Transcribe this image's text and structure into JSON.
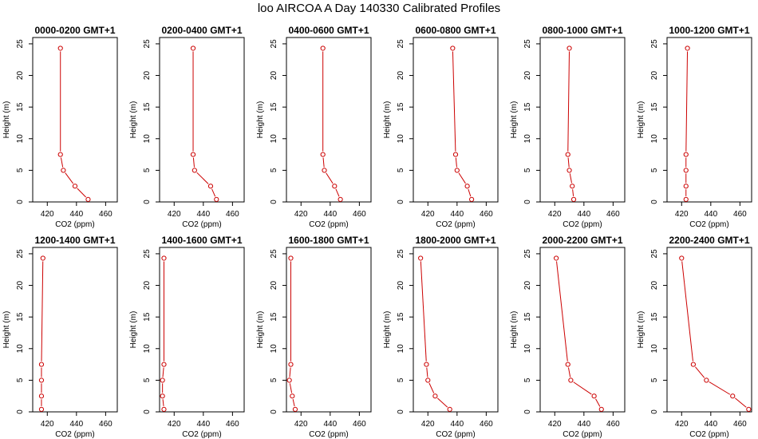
{
  "page_title": "loo AIRCOA A  Day 140330  Calibrated Profiles",
  "series_color": "#cc0000",
  "chart_data": [
    {
      "type": "line",
      "title": "0000-0200 GMT+1",
      "xlabel": "CO2 (ppm)",
      "ylabel": "Height (m)",
      "xlim": [
        410,
        468
      ],
      "ylim": [
        0,
        26
      ],
      "xticks": [
        420,
        440,
        460
      ],
      "yticks": [
        0,
        5,
        10,
        15,
        20,
        25
      ],
      "grid": false,
      "series": [
        {
          "x": [
            448,
            439,
            431,
            429,
            429
          ],
          "y": [
            0.4,
            2.5,
            5,
            7.5,
            24.3
          ]
        }
      ]
    },
    {
      "type": "line",
      "title": "0200-0400 GMT+1",
      "xlabel": "CO2 (ppm)",
      "ylabel": "Height (m)",
      "xlim": [
        410,
        468
      ],
      "ylim": [
        0,
        26
      ],
      "xticks": [
        420,
        440,
        460
      ],
      "yticks": [
        0,
        5,
        10,
        15,
        20,
        25
      ],
      "grid": false,
      "series": [
        {
          "x": [
            449,
            445,
            434,
            433,
            433
          ],
          "y": [
            0.4,
            2.5,
            5,
            7.5,
            24.3
          ]
        }
      ]
    },
    {
      "type": "line",
      "title": "0400-0600 GMT+1",
      "xlabel": "CO2 (ppm)",
      "ylabel": "Height (m)",
      "xlim": [
        410,
        468
      ],
      "ylim": [
        0,
        26
      ],
      "xticks": [
        420,
        440,
        460
      ],
      "yticks": [
        0,
        5,
        10,
        15,
        20,
        25
      ],
      "grid": false,
      "series": [
        {
          "x": [
            447,
            443,
            436,
            435,
            435
          ],
          "y": [
            0.4,
            2.5,
            5,
            7.5,
            24.3
          ]
        }
      ]
    },
    {
      "type": "line",
      "title": "0600-0800 GMT+1",
      "xlabel": "CO2 (ppm)",
      "ylabel": "Height (m)",
      "xlim": [
        410,
        468
      ],
      "ylim": [
        0,
        26
      ],
      "xticks": [
        420,
        440,
        460
      ],
      "yticks": [
        0,
        5,
        10,
        15,
        20,
        25
      ],
      "grid": false,
      "series": [
        {
          "x": [
            450,
            447,
            440,
            439,
            437
          ],
          "y": [
            0.4,
            2.5,
            5,
            7.5,
            24.3
          ]
        }
      ]
    },
    {
      "type": "line",
      "title": "0800-1000 GMT+1",
      "xlabel": "CO2 (ppm)",
      "ylabel": "Height (m)",
      "xlim": [
        410,
        468
      ],
      "ylim": [
        0,
        26
      ],
      "xticks": [
        420,
        440,
        460
      ],
      "yticks": [
        0,
        5,
        10,
        15,
        20,
        25
      ],
      "grid": false,
      "series": [
        {
          "x": [
            433,
            432,
            430,
            429,
            430
          ],
          "y": [
            0.4,
            2.5,
            5,
            7.5,
            24.3
          ]
        }
      ]
    },
    {
      "type": "line",
      "title": "1000-1200 GMT+1",
      "xlabel": "CO2 (ppm)",
      "ylabel": "Height (m)",
      "xlim": [
        410,
        468
      ],
      "ylim": [
        0,
        26
      ],
      "xticks": [
        420,
        440,
        460
      ],
      "yticks": [
        0,
        5,
        10,
        15,
        20,
        25
      ],
      "grid": false,
      "series": [
        {
          "x": [
            423,
            423,
            423,
            423,
            424
          ],
          "y": [
            0.4,
            2.5,
            5,
            7.5,
            24.3
          ]
        }
      ]
    },
    {
      "type": "line",
      "title": "1200-1400 GMT+1",
      "xlabel": "CO2 (ppm)",
      "ylabel": "Height (m)",
      "xlim": [
        410,
        468
      ],
      "ylim": [
        0,
        26
      ],
      "xticks": [
        420,
        440,
        460
      ],
      "yticks": [
        0,
        5,
        10,
        15,
        20,
        25
      ],
      "grid": false,
      "series": [
        {
          "x": [
            416,
            416,
            416,
            416,
            417
          ],
          "y": [
            0.4,
            2.5,
            5,
            7.5,
            24.3
          ]
        }
      ]
    },
    {
      "type": "line",
      "title": "1400-1600 GMT+1",
      "xlabel": "CO2 (ppm)",
      "ylabel": "Height (m)",
      "xlim": [
        410,
        468
      ],
      "ylim": [
        0,
        26
      ],
      "xticks": [
        420,
        440,
        460
      ],
      "yticks": [
        0,
        5,
        10,
        15,
        20,
        25
      ],
      "grid": false,
      "series": [
        {
          "x": [
            413,
            412,
            412,
            413,
            413
          ],
          "y": [
            0.4,
            2.5,
            5,
            7.5,
            24.3
          ]
        }
      ]
    },
    {
      "type": "line",
      "title": "1600-1800 GMT+1",
      "xlabel": "CO2 (ppm)",
      "ylabel": "Height (m)",
      "xlim": [
        410,
        468
      ],
      "ylim": [
        0,
        26
      ],
      "xticks": [
        420,
        440,
        460
      ],
      "yticks": [
        0,
        5,
        10,
        15,
        20,
        25
      ],
      "grid": false,
      "series": [
        {
          "x": [
            416,
            414,
            412,
            413,
            413
          ],
          "y": [
            0.4,
            2.5,
            5,
            7.5,
            24.3
          ]
        }
      ]
    },
    {
      "type": "line",
      "title": "1800-2000 GMT+1",
      "xlabel": "CO2 (ppm)",
      "ylabel": "Height (m)",
      "xlim": [
        410,
        468
      ],
      "ylim": [
        0,
        26
      ],
      "xticks": [
        420,
        440,
        460
      ],
      "yticks": [
        0,
        5,
        10,
        15,
        20,
        25
      ],
      "grid": false,
      "series": [
        {
          "x": [
            435,
            425,
            420,
            419,
            415
          ],
          "y": [
            0.4,
            2.5,
            5,
            7.5,
            24.3
          ]
        }
      ]
    },
    {
      "type": "line",
      "title": "2000-2200 GMT+1",
      "xlabel": "CO2 (ppm)",
      "ylabel": "Height (m)",
      "xlim": [
        410,
        468
      ],
      "ylim": [
        0,
        26
      ],
      "xticks": [
        420,
        440,
        460
      ],
      "yticks": [
        0,
        5,
        10,
        15,
        20,
        25
      ],
      "grid": false,
      "series": [
        {
          "x": [
            452,
            447,
            431,
            429,
            421
          ],
          "y": [
            0.4,
            2.5,
            5,
            7.5,
            24.3
          ]
        }
      ]
    },
    {
      "type": "line",
      "title": "2200-2400 GMT+1",
      "xlabel": "CO2 (ppm)",
      "ylabel": "Height (m)",
      "xlim": [
        410,
        468
      ],
      "ylim": [
        0,
        26
      ],
      "xticks": [
        420,
        440,
        460
      ],
      "yticks": [
        0,
        5,
        10,
        15,
        20,
        25
      ],
      "grid": false,
      "series": [
        {
          "x": [
            466,
            455,
            437,
            428,
            420
          ],
          "y": [
            0.4,
            2.5,
            5,
            7.5,
            24.3
          ]
        }
      ]
    }
  ]
}
